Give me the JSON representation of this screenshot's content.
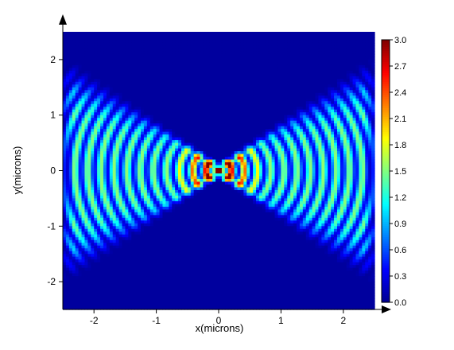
{
  "chart_data": {
    "type": "heatmap",
    "title": "",
    "xlabel": "x(microns)",
    "ylabel": "y(microns)",
    "xlim": [
      -2.5,
      2.5
    ],
    "ylim": [
      -2.5,
      2.5
    ],
    "x_ticks": [
      -2,
      -1,
      0,
      1,
      2
    ],
    "y_ticks": [
      -2,
      -1,
      0,
      1,
      2
    ],
    "colorbar": {
      "min": 0.0,
      "max": 3.0,
      "ticks": [
        "0.0",
        "0.3",
        "0.6",
        "0.9",
        "1.2",
        "1.5",
        "1.8",
        "2.1",
        "2.4",
        "2.7",
        "3.0"
      ],
      "colors": [
        "#00008f",
        "#0000ff",
        "#0080ff",
        "#00ffff",
        "#80ff80",
        "#ffff00",
        "#ff8000",
        "#ff0000",
        "#800000"
      ]
    },
    "field": {
      "description_free": true,
      "grid_nx": 100,
      "grid_ny": 100,
      "background_value": 0.05,
      "focus": [
        0,
        0
      ],
      "peak_value": 3.0,
      "wave_period_um": 0.21,
      "cone_halfwidth_at_x_edge_um": 1.75,
      "waist_um": 0.13
    },
    "grid": false,
    "legend": "colorbar-right"
  }
}
